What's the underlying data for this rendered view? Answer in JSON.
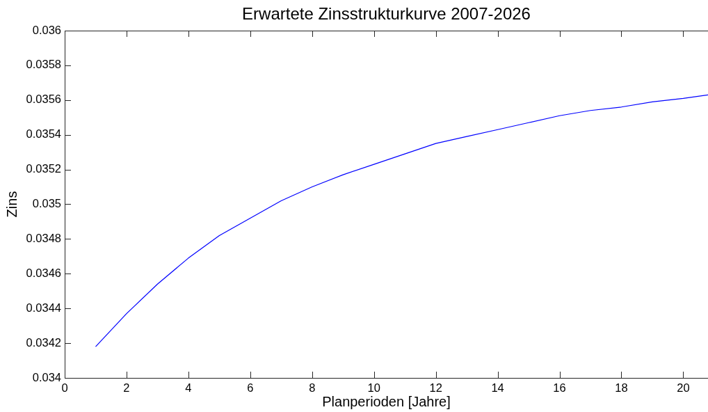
{
  "chart_data": {
    "type": "line",
    "title": "Erwartete Zinsstrukturkurve 2007-2026",
    "xlabel": "Planperioden [Jahre]",
    "ylabel": "Zins",
    "x": [
      1,
      2,
      3,
      4,
      5,
      6,
      7,
      8,
      9,
      10,
      11,
      12,
      13,
      14,
      15,
      16,
      17,
      18,
      19,
      20,
      20.8
    ],
    "series": [
      {
        "color": "#0000ff",
        "values": [
          0.03418,
          0.03437,
          0.03454,
          0.03469,
          0.03482,
          0.03492,
          0.03502,
          0.0351,
          0.03517,
          0.03523,
          0.03529,
          0.03535,
          0.03539,
          0.03543,
          0.03547,
          0.03551,
          0.03554,
          0.03556,
          0.03559,
          0.03561,
          0.03563
        ]
      }
    ],
    "xlim": [
      0,
      20.8
    ],
    "xticks": [
      0,
      2,
      4,
      6,
      8,
      10,
      12,
      14,
      16,
      18,
      20
    ],
    "ylim": [
      0.034,
      0.036
    ],
    "yticks": [
      0.034,
      0.0342,
      0.0344,
      0.0346,
      0.0348,
      0.035,
      0.0352,
      0.0354,
      0.0356,
      0.0358,
      0.036
    ],
    "grid": false,
    "legend": false,
    "marker": "none",
    "line_style": "solid"
  }
}
